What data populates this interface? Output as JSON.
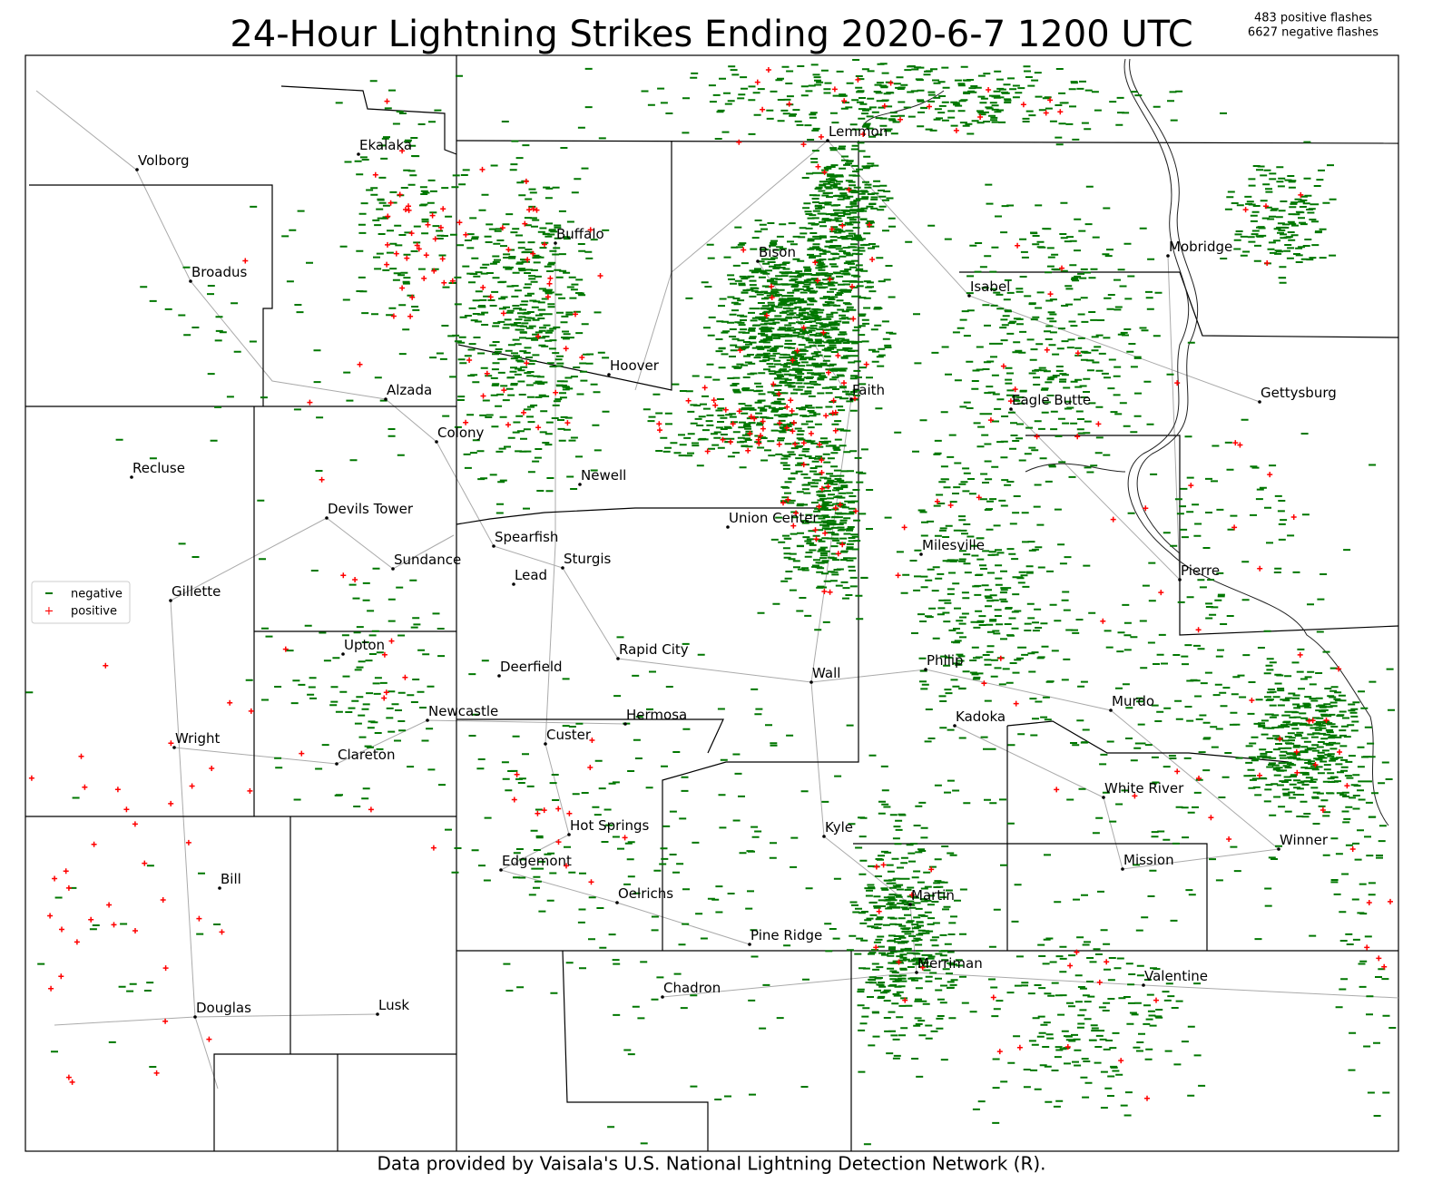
{
  "header": {
    "title": "24-Hour Lightning Strikes Ending 2020-6-7 1200 UTC",
    "counts": [
      "483 positive flashes",
      "6627 negative flashes"
    ]
  },
  "legend": {
    "negative": "negative",
    "positive": "positive"
  },
  "footer": "Data provided by Vaisala's U.S. National Lightning Detection Network (R).",
  "cities": [
    "Volborg",
    "Ekalaka",
    "Broadus",
    "Alzada",
    "Buffalo",
    "Bison",
    "Lemmon",
    "Mobridge",
    "Isabel",
    "Hoover",
    "Faith",
    "Eagle Butte",
    "Gettysburg",
    "Colony",
    "Recluse",
    "Newell",
    "Devils Tower",
    "Union Center",
    "Spearfish",
    "Milesville",
    "Sturgis",
    "Sundance",
    "Lead",
    "Pierre",
    "Gillette",
    "Upton",
    "Rapid City",
    "Deerfield",
    "Wall",
    "Philip",
    "Murdo",
    "Newcastle",
    "Hermosa",
    "Kadoka",
    "Custer",
    "Wright",
    "Clareton",
    "White River",
    "Hot Springs",
    "Kyle",
    "Winner",
    "Mission",
    "Edgemont",
    "Bill",
    "Martin",
    "Oelrichs",
    "Pine Ridge",
    "Merriman",
    "Valentine",
    "Chadron",
    "Douglas",
    "Lusk"
  ]
}
